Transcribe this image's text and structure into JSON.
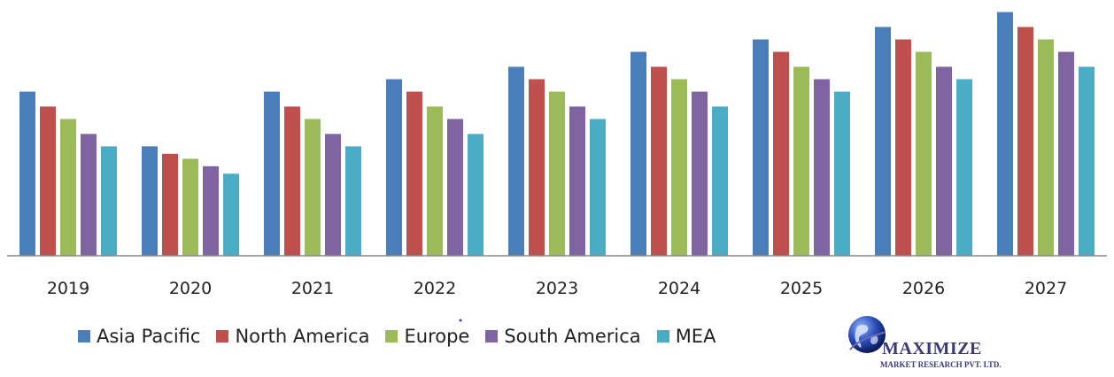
{
  "chart_data": {
    "type": "bar",
    "title": "",
    "xlabel": "",
    "ylabel": "",
    "ylim": [
      0,
      100
    ],
    "grid": false,
    "legend_position": "bottom",
    "categories": [
      "2019",
      "2020",
      "2021",
      "2022",
      "2023",
      "2024",
      "2025",
      "2026",
      "2027"
    ],
    "series": [
      {
        "name": "Asia Pacific",
        "color": "#4a7ebb",
        "values": [
          66,
          44,
          66,
          71,
          76,
          82,
          87,
          92,
          98
        ]
      },
      {
        "name": "North America",
        "color": "#c0504d",
        "values": [
          60,
          41,
          60,
          66,
          71,
          76,
          82,
          87,
          92
        ]
      },
      {
        "name": "Europe",
        "color": "#9bbb59",
        "values": [
          55,
          39,
          55,
          60,
          66,
          71,
          76,
          82,
          87
        ]
      },
      {
        "name": "South America",
        "color": "#8064a2",
        "values": [
          49,
          36,
          49,
          55,
          60,
          66,
          71,
          76,
          82
        ]
      },
      {
        "name": "MEA",
        "color": "#4bacc6",
        "values": [
          44,
          33,
          44,
          49,
          55,
          60,
          66,
          71,
          76
        ]
      }
    ]
  },
  "logo": {
    "title": "MAXIMIZE",
    "subtitle": "MARKET RESEARCH PVT. LTD."
  }
}
